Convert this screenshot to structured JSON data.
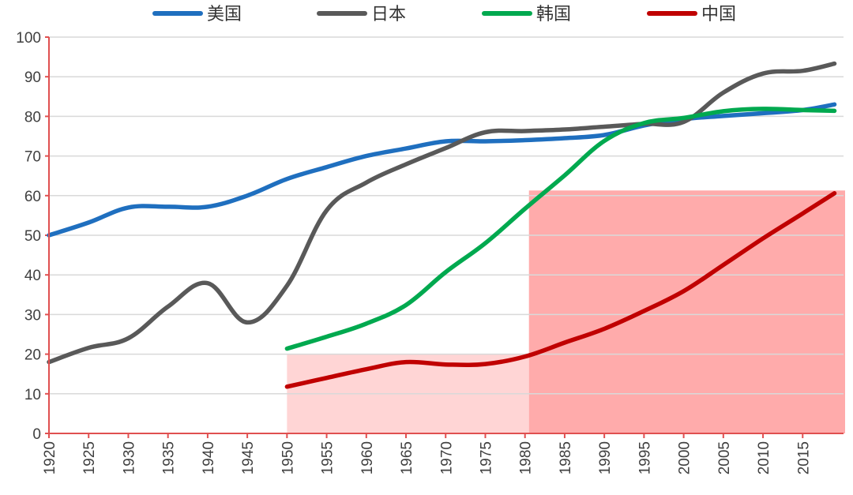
{
  "chart_data": {
    "type": "line",
    "title": "",
    "xlabel": "",
    "ylabel": "",
    "xlim": [
      1920,
      2019
    ],
    "ylim": [
      0,
      100
    ],
    "y_ticks": [
      0,
      10,
      20,
      30,
      40,
      50,
      60,
      70,
      80,
      90,
      100
    ],
    "x_ticks": [
      1920,
      1925,
      1930,
      1935,
      1940,
      1945,
      1950,
      1955,
      1960,
      1965,
      1970,
      1975,
      1980,
      1985,
      1990,
      1995,
      2000,
      2005,
      2010,
      2015
    ],
    "grid": "horizontal",
    "legend_position": "top",
    "series": [
      {
        "name": "美国",
        "color": "#1F6FBF",
        "x": [
          1920,
          1925,
          1930,
          1935,
          1940,
          1945,
          1950,
          1955,
          1960,
          1965,
          1970,
          1975,
          1980,
          1985,
          1990,
          1995,
          2000,
          2005,
          2010,
          2015,
          2019
        ],
        "y": [
          50,
          53.2,
          57,
          57.2,
          57.2,
          60,
          64.2,
          67.2,
          70,
          71.9,
          73.7,
          73.7,
          74,
          74.5,
          75.3,
          77.7,
          79.3,
          80.1,
          80.8,
          81.6,
          83
        ]
      },
      {
        "name": "日本",
        "color": "#595959",
        "x": [
          1920,
          1925,
          1930,
          1935,
          1940,
          1945,
          1950,
          1955,
          1960,
          1965,
          1970,
          1975,
          1980,
          1985,
          1990,
          1995,
          2000,
          2005,
          2010,
          2015,
          2019
        ],
        "y": [
          18,
          21.6,
          24,
          32,
          37.9,
          28,
          37.3,
          56.3,
          63.3,
          67.9,
          72,
          76,
          76.3,
          76.7,
          77.4,
          78.1,
          78.6,
          86,
          90.8,
          91.5,
          93.3
        ]
      },
      {
        "name": "韩国",
        "color": "#00A94F",
        "x": [
          1950,
          1955,
          1960,
          1965,
          1970,
          1975,
          1980,
          1985,
          1990,
          1995,
          2000,
          2005,
          2010,
          2015,
          2019
        ],
        "y": [
          21.4,
          24.4,
          27.7,
          32.4,
          40.7,
          48,
          56.7,
          65.1,
          73.8,
          78.3,
          79.6,
          81.3,
          81.9,
          81.6,
          81.4
        ]
      },
      {
        "name": "中国",
        "color": "#C00000",
        "x": [
          1950,
          1955,
          1960,
          1965,
          1970,
          1975,
          1980,
          1985,
          1990,
          1995,
          2000,
          2005,
          2010,
          2015,
          2019
        ],
        "y": [
          11.8,
          14,
          16.2,
          18,
          17.4,
          17.5,
          19.4,
          22.9,
          26.4,
          30.9,
          35.9,
          42.5,
          49.2,
          55.5,
          60.6
        ]
      }
    ],
    "highlight_regions": [
      {
        "x_range": [
          1950,
          1980.5
        ],
        "y_range": [
          0,
          20
        ],
        "color": "#FFD5D5"
      },
      {
        "x_range": [
          1980.5,
          2020.5
        ],
        "y_range": [
          0,
          61.3
        ],
        "color": "#FFABAB"
      }
    ]
  }
}
